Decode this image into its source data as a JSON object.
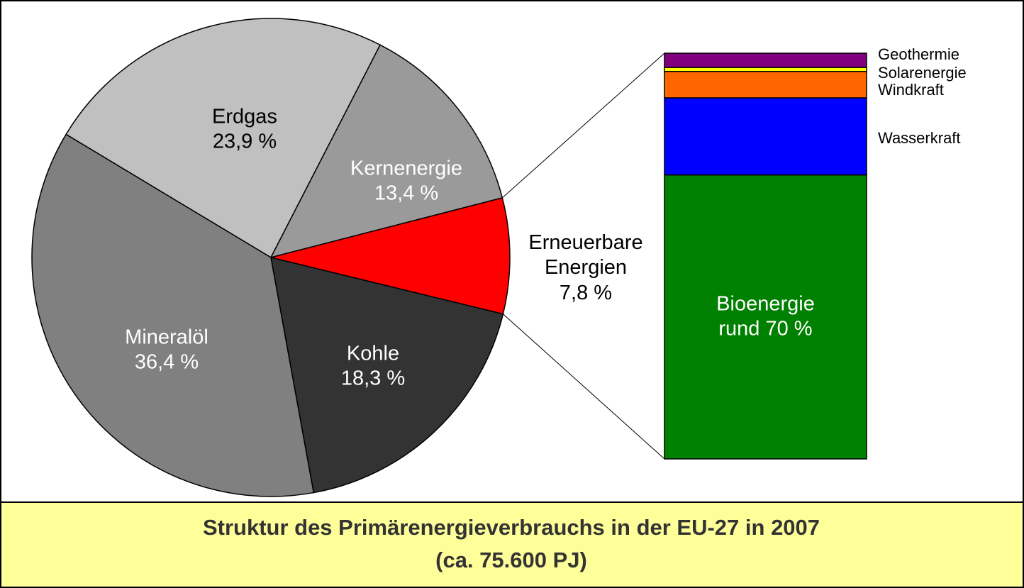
{
  "chart_data": [
    {
      "type": "pie",
      "title": "Struktur des Primärenergieverbrauchs in der EU-27 in 2007",
      "subtitle": "(ca. 75.600 PJ)",
      "categories": [
        "Erdgas",
        "Kernenergie",
        "Erneuerbare Energien",
        "Kohle",
        "Mineralöl"
      ],
      "values": [
        23.9,
        13.4,
        7.8,
        18.3,
        36.4
      ],
      "value_labels": [
        "23,9 %",
        "13,4 %",
        "7,8 %",
        "18,3 %",
        "36,4 %"
      ],
      "colors": [
        "#c0c0c0",
        "#9a9a9a",
        "#ff0000",
        "#333333",
        "#808080"
      ],
      "label_colors": [
        "#000000",
        "#ffffff",
        "#000000",
        "#ffffff",
        "#ffffff"
      ]
    },
    {
      "type": "stacked-bar",
      "categories": [
        "Bioenergie",
        "Wasserkraft",
        "Windkraft",
        "Solarenergie",
        "Geothermie"
      ],
      "values": [
        70,
        19,
        6.5,
        1,
        3.5
      ],
      "value_labels": [
        "rund 70 %",
        null,
        null,
        null,
        null
      ],
      "colors": [
        "#008000",
        "#0000ff",
        "#ff6600",
        "#ffff00",
        "#800080"
      ],
      "ylim": [
        0,
        100
      ]
    }
  ]
}
